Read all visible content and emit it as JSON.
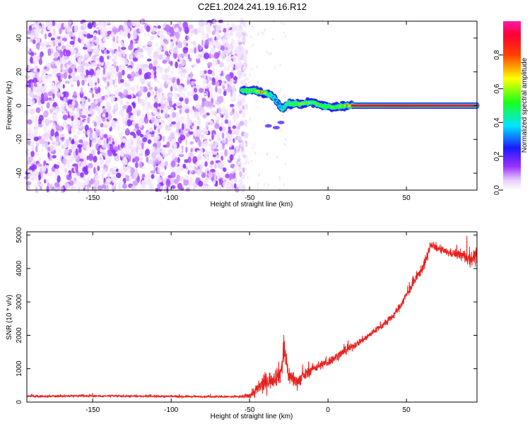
{
  "chart_data": [
    {
      "type": "heatmap",
      "title": "C2E1.2024.241.19.16.R12",
      "xlabel": "Height of straight line (km)",
      "ylabel": "Frequency (Hz)",
      "xlim": [
        -192,
        95
      ],
      "ylim": [
        -50,
        50
      ],
      "xticks": [
        "-150",
        "-100",
        "-50",
        "0",
        "50"
      ],
      "yticks": [
        "-40",
        "-20",
        "0",
        "20",
        "40"
      ],
      "colorbar": {
        "label": "Normalized spectral amplitude",
        "range": [
          0.0,
          1.0
        ],
        "ticks": [
          "0.0",
          "0.2",
          "0.4",
          "0.6",
          "0.8"
        ],
        "colormap": "rainbow (white → purple → blue → cyan → green → yellow → red → magenta)"
      },
      "features": {
        "noise_region_x": [
          -192,
          -55
        ],
        "noise_peak_amplitude": 0.15,
        "ridge_points": [
          {
            "x": -55,
            "y": 9,
            "amplitude": 0.45
          },
          {
            "x": -48,
            "y": 9,
            "amplitude": 0.6
          },
          {
            "x": -42,
            "y": 8,
            "amplitude": 0.8
          },
          {
            "x": -36,
            "y": 6,
            "amplitude": 0.45
          },
          {
            "x": -32,
            "y": 2,
            "amplitude": 0.35
          },
          {
            "x": -30,
            "y": -2,
            "amplitude": 0.4
          },
          {
            "x": -25,
            "y": 1,
            "amplitude": 0.5
          },
          {
            "x": -18,
            "y": 1,
            "amplitude": 0.6
          },
          {
            "x": -10,
            "y": 2,
            "amplitude": 0.55
          },
          {
            "x": -4,
            "y": 0,
            "amplitude": 0.5
          },
          {
            "x": 4,
            "y": -1,
            "amplitude": 0.55
          },
          {
            "x": 10,
            "y": 0,
            "amplitude": 0.6
          },
          {
            "x": 16,
            "y": 0,
            "amplitude": 0.9
          },
          {
            "x": 95,
            "y": 0,
            "amplitude": 0.95
          }
        ]
      }
    },
    {
      "type": "line",
      "xlabel": "Height of straight line (km)",
      "ylabel": "SNR (10 * v/v)",
      "xlim": [
        -192,
        95
      ],
      "ylim": [
        0,
        5100
      ],
      "xticks": [
        "-150",
        "-100",
        "-50",
        "0",
        "50"
      ],
      "yticks": [
        "0",
        "1000",
        "2000",
        "3000",
        "4000",
        "5000"
      ],
      "color": "#e8211e",
      "x": [
        -192,
        -180,
        -160,
        -140,
        -120,
        -100,
        -80,
        -60,
        -55,
        -50,
        -45,
        -40,
        -35,
        -30,
        -28,
        -25,
        -20,
        -15,
        -10,
        -5,
        0,
        5,
        10,
        15,
        20,
        25,
        30,
        35,
        40,
        45,
        50,
        55,
        60,
        63,
        65,
        70,
        75,
        80,
        85,
        90,
        95
      ],
      "y": [
        180,
        170,
        190,
        180,
        175,
        170,
        165,
        160,
        165,
        200,
        380,
        600,
        700,
        900,
        1600,
        800,
        600,
        800,
        1000,
        1100,
        1200,
        1350,
        1500,
        1650,
        1800,
        1950,
        2150,
        2300,
        2500,
        2800,
        3200,
        3600,
        4000,
        4300,
        4700,
        4600,
        4500,
        4450,
        4400,
        4300,
        4350
      ],
      "noise_amplitude": [
        40,
        40,
        45,
        45,
        40,
        40,
        40,
        40,
        60,
        120,
        350,
        400,
        350,
        500,
        600,
        400,
        300,
        250,
        200,
        200,
        200,
        180,
        180,
        160,
        150,
        150,
        150,
        150,
        150,
        170,
        180,
        200,
        220,
        250,
        180,
        150,
        160,
        180,
        250,
        350,
        350
      ]
    }
  ]
}
